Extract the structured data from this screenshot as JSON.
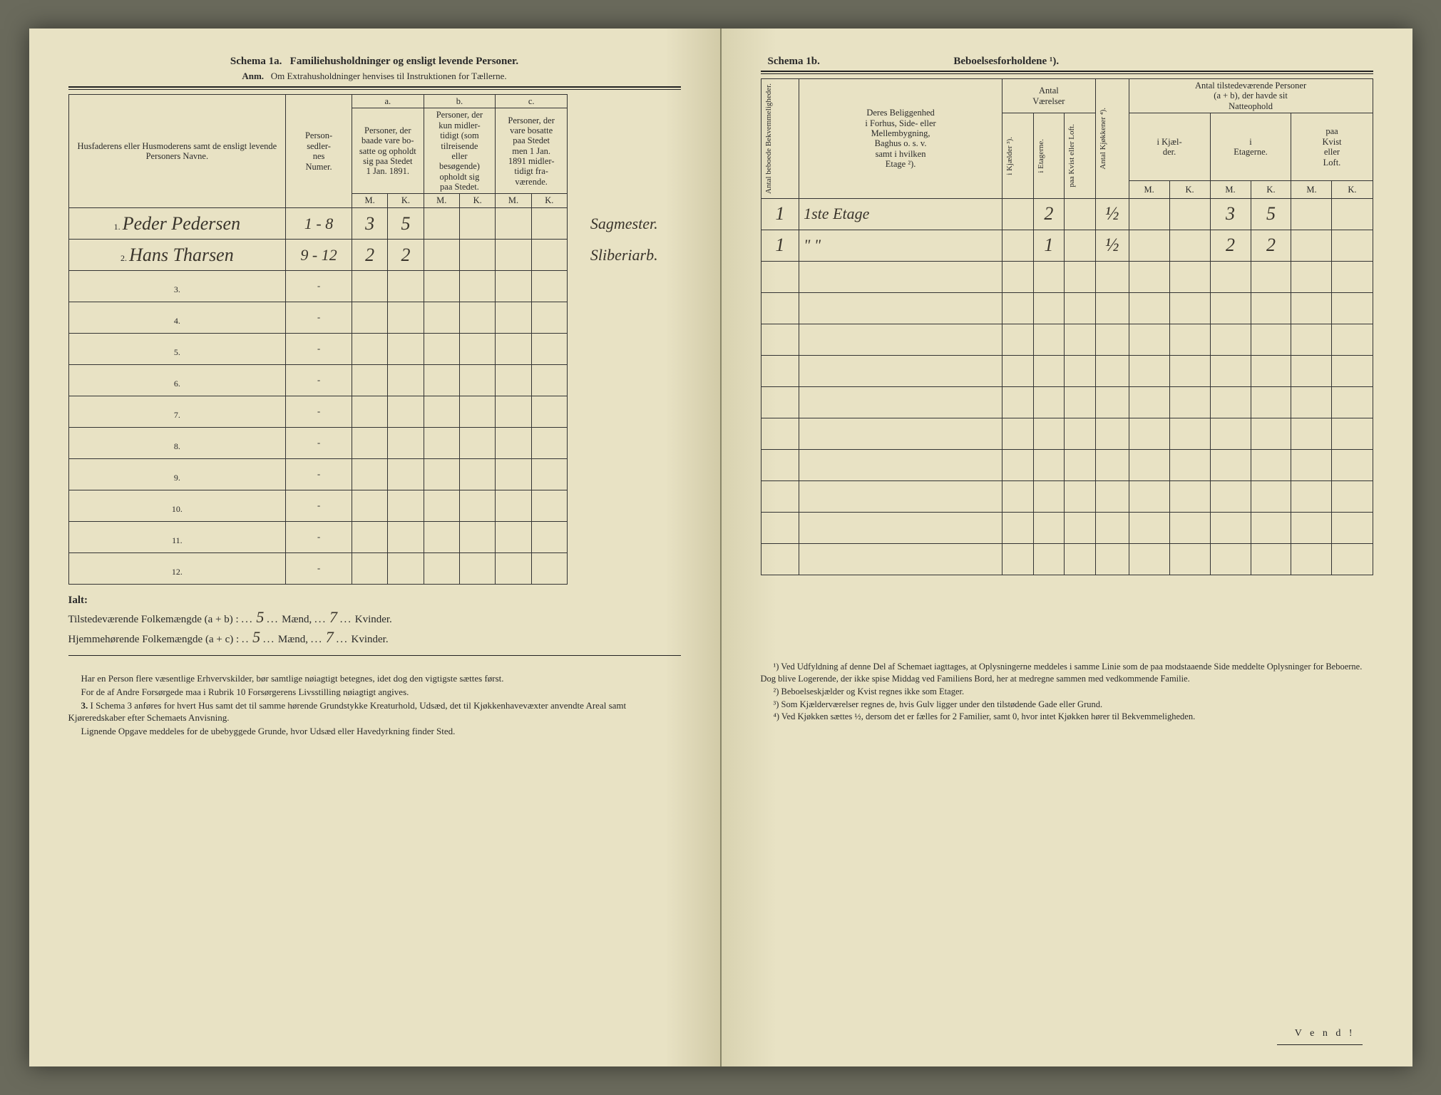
{
  "left": {
    "title_prefix": "Schema 1a.",
    "title": "Familiehusholdninger og ensligt levende Personer.",
    "subtitle_prefix": "Anm.",
    "subtitle": "Om Extrahusholdninger henvises til Instruktionen for Tællerne.",
    "headers": {
      "name": "Husfaderens eller Husmoderens samt de ensligt levende Personers Navne.",
      "person_num": "Person-\nsedler-\nnes\nNumer.",
      "a_label": "a.",
      "a_desc": "Personer, der\nbaade vare bo-\nsatte og opholdt\nsig paa Stedet\n1 Jan. 1891.",
      "b_label": "b.",
      "b_desc": "Personer, der\nkun midler-\ntidigt (som\ntilreisende\neller\nbesøgende)\nopholdt sig\npaa Stedet.",
      "c_label": "c.",
      "c_desc": "Personer, der\nvare bosatte\npaa Stedet\nmen 1 Jan.\n1891 midler-\ntidigt fra-\nværende.",
      "M": "M.",
      "K": "K."
    },
    "rows": [
      {
        "n": "1.",
        "name": "Peder Pedersen",
        "pn": "1 - 8",
        "aM": "3",
        "aK": "5",
        "bM": "",
        "bK": "",
        "cM": "",
        "cK": "",
        "occ": "Sagmester."
      },
      {
        "n": "2.",
        "name": "Hans Tharsen",
        "pn": "9 - 12",
        "aM": "2",
        "aK": "2",
        "bM": "",
        "bK": "",
        "cM": "",
        "cK": "",
        "occ": "Sliberiarb."
      },
      {
        "n": "3.",
        "name": "",
        "pn": "-",
        "aM": "",
        "aK": "",
        "bM": "",
        "bK": "",
        "cM": "",
        "cK": "",
        "occ": ""
      },
      {
        "n": "4.",
        "name": "",
        "pn": "-",
        "aM": "",
        "aK": "",
        "bM": "",
        "bK": "",
        "cM": "",
        "cK": "",
        "occ": ""
      },
      {
        "n": "5.",
        "name": "",
        "pn": "-",
        "aM": "",
        "aK": "",
        "bM": "",
        "bK": "",
        "cM": "",
        "cK": "",
        "occ": ""
      },
      {
        "n": "6.",
        "name": "",
        "pn": "-",
        "aM": "",
        "aK": "",
        "bM": "",
        "bK": "",
        "cM": "",
        "cK": "",
        "occ": ""
      },
      {
        "n": "7.",
        "name": "",
        "pn": "-",
        "aM": "",
        "aK": "",
        "bM": "",
        "bK": "",
        "cM": "",
        "cK": "",
        "occ": ""
      },
      {
        "n": "8.",
        "name": "",
        "pn": "-",
        "aM": "",
        "aK": "",
        "bM": "",
        "bK": "",
        "cM": "",
        "cK": "",
        "occ": ""
      },
      {
        "n": "9.",
        "name": "",
        "pn": "-",
        "aM": "",
        "aK": "",
        "bM": "",
        "bK": "",
        "cM": "",
        "cK": "",
        "occ": ""
      },
      {
        "n": "10.",
        "name": "",
        "pn": "-",
        "aM": "",
        "aK": "",
        "bM": "",
        "bK": "",
        "cM": "",
        "cK": "",
        "occ": ""
      },
      {
        "n": "11.",
        "name": "",
        "pn": "-",
        "aM": "",
        "aK": "",
        "bM": "",
        "bK": "",
        "cM": "",
        "cK": "",
        "occ": ""
      },
      {
        "n": "12.",
        "name": "",
        "pn": "-",
        "aM": "",
        "aK": "",
        "bM": "",
        "bK": "",
        "cM": "",
        "cK": "",
        "occ": ""
      }
    ],
    "totals": {
      "ialt": "Ialt:",
      "line1_label": "Tilstedeværende Folkemængde (a + b) :",
      "line1_m": "5",
      "line1_k": "7",
      "line2_label": "Hjemmehørende Folkemængde (a + c) :",
      "line2_m": "5",
      "line2_k": "7",
      "maend": "Mænd,",
      "kvinder": "Kvinder."
    },
    "foot": {
      "p1": "Har en Person flere væsentlige Erhvervskilder, bør samtlige nøiagtigt betegnes, idet dog den vigtigste sættes først.",
      "p2": "For de af Andre Forsørgede maa i Rubrik 10 Forsørgerens Livsstilling nøiagtigt angives.",
      "p3_num": "3.",
      "p3": "I Schema 3 anføres for hvert Hus samt det til samme hørende Grundstykke Kreaturhold, Udsæd, det til Kjøkkenhavevæxter anvendte Areal samt Kjøreredskaber efter Schemaets Anvisning.",
      "p4": "Lignende Opgave meddeles for de ubebyggede Grunde, hvor Udsæd eller Havedyrkning finder Sted."
    }
  },
  "right": {
    "title_prefix": "Schema 1b.",
    "title": "Beboelsesforholdene ¹).",
    "headers": {
      "bekv": "Antal beboede\nBekvemmeligheder.",
      "belig": "Deres Beliggenhed\ni Forhus, Side- eller\nMellembygning,\nBaghus o. s. v.\nsamt i hvilken\nEtage ²).",
      "antal_vaer": "Antal\nVærelser",
      "kjaelder": "i Kjælder ³).",
      "etagerne": "i Etagerne.",
      "kvist": "paa Kvist eller\nLoft.",
      "kjokken": "Antal Kjøkkener ⁴).",
      "personer": "Antal tilstedeværende Personer\n(a + b), der havde sit\nNatteophold",
      "i_kjael": "i Kjæl-\nder.",
      "i_etag": "i\nEtagerne.",
      "paa_kvist": "paa\nKvist\neller\nLoft.",
      "M": "M.",
      "K": "K."
    },
    "rows": [
      {
        "bekv": "1",
        "belig": "1ste Etage",
        "kj": "",
        "et": "2",
        "kv": "",
        "kok": "½",
        "ikM": "",
        "ikK": "",
        "ieM": "3",
        "ieK": "5",
        "pkM": "",
        "pkK": ""
      },
      {
        "bekv": "1",
        "belig": "\" \"",
        "kj": "",
        "et": "1",
        "kv": "",
        "kok": "½",
        "ikM": "",
        "ikK": "",
        "ieM": "2",
        "ieK": "2",
        "pkM": "",
        "pkK": ""
      },
      {
        "bekv": "",
        "belig": "",
        "kj": "",
        "et": "",
        "kv": "",
        "kok": "",
        "ikM": "",
        "ikK": "",
        "ieM": "",
        "ieK": "",
        "pkM": "",
        "pkK": ""
      },
      {
        "bekv": "",
        "belig": "",
        "kj": "",
        "et": "",
        "kv": "",
        "kok": "",
        "ikM": "",
        "ikK": "",
        "ieM": "",
        "ieK": "",
        "pkM": "",
        "pkK": ""
      },
      {
        "bekv": "",
        "belig": "",
        "kj": "",
        "et": "",
        "kv": "",
        "kok": "",
        "ikM": "",
        "ikK": "",
        "ieM": "",
        "ieK": "",
        "pkM": "",
        "pkK": ""
      },
      {
        "bekv": "",
        "belig": "",
        "kj": "",
        "et": "",
        "kv": "",
        "kok": "",
        "ikM": "",
        "ikK": "",
        "ieM": "",
        "ieK": "",
        "pkM": "",
        "pkK": ""
      },
      {
        "bekv": "",
        "belig": "",
        "kj": "",
        "et": "",
        "kv": "",
        "kok": "",
        "ikM": "",
        "ikK": "",
        "ieM": "",
        "ieK": "",
        "pkM": "",
        "pkK": ""
      },
      {
        "bekv": "",
        "belig": "",
        "kj": "",
        "et": "",
        "kv": "",
        "kok": "",
        "ikM": "",
        "ikK": "",
        "ieM": "",
        "ieK": "",
        "pkM": "",
        "pkK": ""
      },
      {
        "bekv": "",
        "belig": "",
        "kj": "",
        "et": "",
        "kv": "",
        "kok": "",
        "ikM": "",
        "ikK": "",
        "ieM": "",
        "ieK": "",
        "pkM": "",
        "pkK": ""
      },
      {
        "bekv": "",
        "belig": "",
        "kj": "",
        "et": "",
        "kv": "",
        "kok": "",
        "ikM": "",
        "ikK": "",
        "ieM": "",
        "ieK": "",
        "pkM": "",
        "pkK": ""
      },
      {
        "bekv": "",
        "belig": "",
        "kj": "",
        "et": "",
        "kv": "",
        "kok": "",
        "ikM": "",
        "ikK": "",
        "ieM": "",
        "ieK": "",
        "pkM": "",
        "pkK": ""
      },
      {
        "bekv": "",
        "belig": "",
        "kj": "",
        "et": "",
        "kv": "",
        "kok": "",
        "ikM": "",
        "ikK": "",
        "ieM": "",
        "ieK": "",
        "pkM": "",
        "pkK": ""
      }
    ],
    "footnotes": {
      "f1": "¹) Ved Udfyldning af denne Del af Schemaet iagttages, at Oplysningerne meddeles i samme Linie som de paa modstaaende Side meddelte Oplysninger for Beboerne. Dog blive Logerende, der ikke spise Middag ved Familiens Bord, her at medregne sammen med vedkommende Familie.",
      "f2": "²) Beboelseskjælder og Kvist regnes ikke som Etager.",
      "f3": "³) Som Kjælderværelser regnes de, hvis Gulv ligger under den tilstødende Gade eller Grund.",
      "f4": "⁴) Ved Kjøkken sættes ½, dersom det er fælles for 2 Familier, samt 0, hvor intet Kjøkken hører til Bekvemmeligheden."
    },
    "vend": "V e n d !"
  }
}
